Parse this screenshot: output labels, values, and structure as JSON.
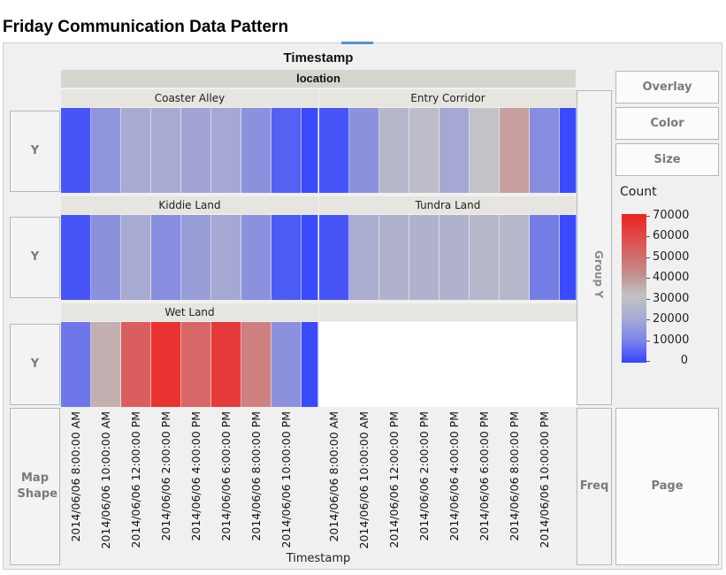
{
  "title": "Friday Communication Data Pattern",
  "drop_zones": {
    "overlay": "Overlay",
    "color": "Color",
    "size": "Size",
    "y_rows": [
      "Y",
      "Y",
      "Y"
    ],
    "map_shape": "Map Shape",
    "freq": "Freq",
    "page": "Page",
    "group_y": "Group Y"
  },
  "chart_data": {
    "type": "heatmap",
    "title": "Timestamp",
    "group_label": "location",
    "xlabel": "Timestamp",
    "x_tick_labels": [
      "2014/06/06 8:00:00 AM",
      "2014/06/06 10:00:00 AM",
      "2014/06/06 12:00:00 PM",
      "2014/06/06 2:00:00 PM",
      "2014/06/06 4:00:00 PM",
      "2014/06/06 6:00:00 PM",
      "2014/06/06 8:00:00 PM",
      "2014/06/06 10:00:00 PM"
    ],
    "color_legend": {
      "title": "Count",
      "min": 0,
      "max": 70000,
      "ticks": [
        "70000",
        "60000",
        "50000",
        "40000",
        "30000",
        "20000",
        "10000",
        "0"
      ]
    },
    "panels": [
      {
        "location": "Coaster Alley",
        "values": [
          3000,
          16000,
          22000,
          22000,
          20000,
          21000,
          15000,
          5000,
          1000
        ]
      },
      {
        "location": "Entry Corridor",
        "values": [
          3000,
          15000,
          27000,
          29000,
          21000,
          31000,
          40000,
          14000,
          1000
        ]
      },
      {
        "location": "Kiddie Land",
        "values": [
          3000,
          15000,
          22000,
          14000,
          18000,
          21000,
          15000,
          4000,
          1000
        ]
      },
      {
        "location": "Tundra Land",
        "values": [
          3000,
          23000,
          25000,
          25000,
          25000,
          27000,
          27000,
          10000,
          1000
        ]
      },
      {
        "location": "Wet Land",
        "values": [
          9000,
          36000,
          55000,
          66000,
          53000,
          64000,
          47000,
          15000,
          1000
        ]
      }
    ],
    "cell_widths_note": "last bin is a partial interval"
  }
}
